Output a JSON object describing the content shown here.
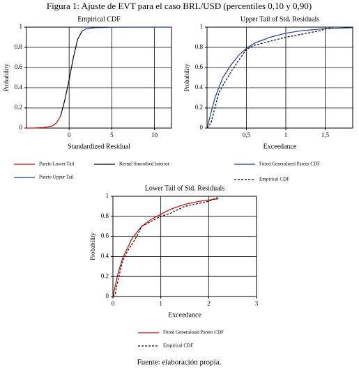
{
  "figure_title": "Figura 1: Ajuste de EVT para el caso BRL/USD (percentiles 0,10 y 0,90)",
  "source": "Fuente: elaboración propia.",
  "chart_data": [
    {
      "type": "line",
      "title": "Empirical CDF",
      "xlabel": "Standardized Residual",
      "ylabel": "Probability",
      "xlim": [
        -5,
        12
      ],
      "xticks": [
        0,
        5,
        10
      ],
      "ylim": [
        0,
        1
      ],
      "yticks": [
        0,
        0.2,
        0.4,
        0.6,
        0.8,
        1
      ],
      "grid": true,
      "series": [
        {
          "name": "Pareto Lower Tail",
          "color": "#cc0000",
          "style": "solid",
          "x": [
            -5,
            -4,
            -3,
            -2,
            -1.5,
            -1
          ],
          "values": [
            0,
            0.001,
            0.005,
            0.02,
            0.05,
            0.12
          ]
        },
        {
          "name": "Kernel Smoothed Interior",
          "color": "#000000",
          "style": "solid",
          "x": [
            -1,
            -0.5,
            0,
            0.5,
            1,
            1.5
          ],
          "values": [
            0.12,
            0.28,
            0.48,
            0.7,
            0.88,
            0.96
          ]
        },
        {
          "name": "Pareto Upper Tail",
          "color": "#1f3a8a",
          "style": "solid",
          "x": [
            1.5,
            2,
            3,
            5,
            8,
            12
          ],
          "values": [
            0.96,
            0.985,
            0.995,
            0.999,
            1,
            1
          ]
        }
      ]
    },
    {
      "type": "line",
      "title": "Upper Tail of Std. Residuals",
      "xlabel": "Exceedance",
      "ylabel": "Probability",
      "xlim": [
        0,
        1.85
      ],
      "xticks": [
        {
          "value": 0.5,
          "label": "0,5"
        },
        1,
        {
          "value": 1.5,
          "label": "1,5"
        }
      ],
      "ylim": [
        0,
        1
      ],
      "yticks": [
        0,
        0.2,
        0.4,
        0.6,
        0.8,
        1
      ],
      "grid": true,
      "series": [
        {
          "name": "Fitted Generalized Pareto CDF",
          "color": "#1f3a8a",
          "style": "solid",
          "x": [
            0,
            0.1,
            0.2,
            0.3,
            0.4,
            0.5,
            0.6,
            0.8,
            1,
            1.2,
            1.5,
            1.85
          ],
          "values": [
            0,
            0.3,
            0.5,
            0.62,
            0.72,
            0.79,
            0.84,
            0.9,
            0.94,
            0.965,
            0.985,
            0.995
          ]
        },
        {
          "name": "Empirical CDF",
          "color": "#000000",
          "style": "dashed",
          "x": [
            0,
            0.05,
            0.1,
            0.15,
            0.2,
            0.3,
            0.4,
            0.5,
            0.6,
            0.8,
            1,
            1.2,
            1.4,
            1.5,
            1.6
          ],
          "values": [
            0,
            0.05,
            0.2,
            0.35,
            0.42,
            0.55,
            0.67,
            0.78,
            0.82,
            0.86,
            0.9,
            0.93,
            0.96,
            0.98,
            1
          ]
        }
      ]
    },
    {
      "type": "line",
      "title": "Lower Tail of Std. Residuals",
      "xlabel": "Exceedance",
      "ylabel": "Probability",
      "xlim": [
        0,
        3
      ],
      "xticks": [
        0,
        1,
        2,
        3
      ],
      "ylim": [
        0,
        1
      ],
      "yticks": [
        0,
        0.2,
        0.4,
        0.6,
        0.8,
        1
      ],
      "grid": true,
      "series": [
        {
          "name": "Fitted Generalized Pareto CDF",
          "color": "#cc0000",
          "style": "solid",
          "x": [
            0,
            0.1,
            0.2,
            0.4,
            0.6,
            0.8,
            1,
            1.2,
            1.5,
            1.8,
            2.2
          ],
          "values": [
            0,
            0.22,
            0.38,
            0.58,
            0.7,
            0.77,
            0.82,
            0.87,
            0.92,
            0.95,
            0.975
          ]
        },
        {
          "name": "Empirical CDF",
          "color": "#000000",
          "style": "dashed",
          "x": [
            0,
            0.05,
            0.1,
            0.2,
            0.3,
            0.5,
            0.6,
            0.8,
            1,
            1.2,
            1.5,
            1.8,
            2,
            2.2
          ],
          "values": [
            0,
            0.03,
            0.15,
            0.35,
            0.45,
            0.6,
            0.7,
            0.75,
            0.8,
            0.83,
            0.9,
            0.93,
            0.95,
            0.99
          ]
        }
      ]
    }
  ]
}
